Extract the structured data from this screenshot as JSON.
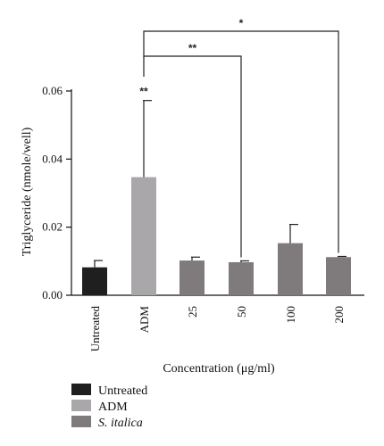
{
  "chart_data": {
    "type": "bar",
    "categories": [
      "Untreated",
      "ADM",
      "25",
      "50",
      "100",
      "200"
    ],
    "values": [
      0.0082,
      0.0347,
      0.0102,
      0.0097,
      0.0153,
      0.0112
    ],
    "errors": [
      0.002,
      0.0225,
      0.001,
      0.0004,
      0.0055,
      0.0002
    ],
    "bar_groups": [
      "Untreated",
      "ADM",
      "S. italica",
      "S. italica",
      "S. italica",
      "S. italica"
    ],
    "xlabel": "Concentration (μg/ml)",
    "ylabel": "Triglyceride (nmole/well)",
    "ylim": [
      0,
      0.06
    ],
    "yticks": [
      "0.00",
      "0.02",
      "0.04",
      "0.06"
    ],
    "grid": false,
    "significance": [
      {
        "label": "**",
        "target": "ADM"
      },
      {
        "label": "**",
        "from": "ADM",
        "to": "50"
      },
      {
        "label": "*",
        "from": "ADM",
        "to": "200"
      }
    ],
    "legend": {
      "position": "bottom-left",
      "entries": [
        {
          "label": "Untreated",
          "color": "#1f1f1f"
        },
        {
          "label": "ADM",
          "color": "#a9a7aa"
        },
        {
          "label": "S. italica",
          "color": "#7f7b7c",
          "italic": true
        }
      ]
    }
  }
}
